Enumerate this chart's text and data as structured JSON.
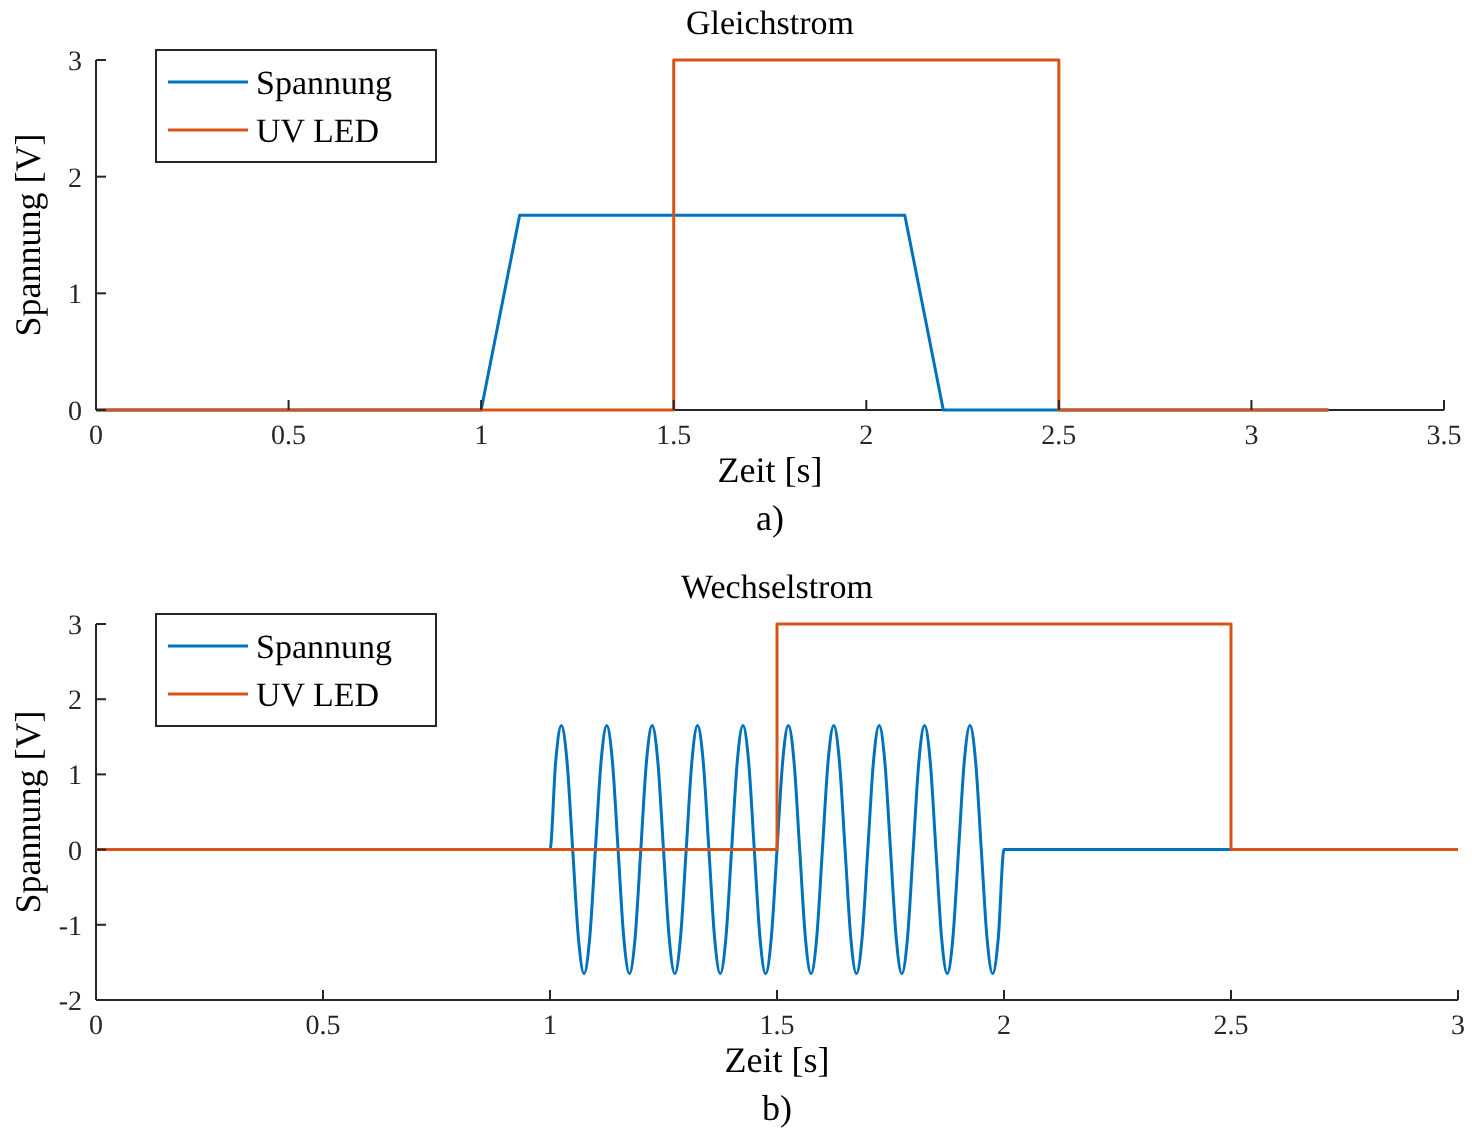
{
  "chart_data": [
    {
      "type": "line",
      "title": "Gleichstrom",
      "xlabel": "Zeit [s]",
      "ylabel": "Spannung [V]",
      "annotations": [
        "a)"
      ],
      "xlim": [
        0,
        3.5
      ],
      "xticks": [
        0,
        0.5,
        1,
        1.5,
        2,
        2.5,
        3,
        3.5
      ],
      "ylim": [
        0,
        3
      ],
      "yticks": [
        0,
        1,
        2,
        3
      ],
      "legend": "top left",
      "grid": false,
      "line_style": "solid",
      "series": [
        {
          "name": "Spannung",
          "color": "#0072bd",
          "x": [
            0,
            1,
            1.1,
            2.1,
            2.2,
            3.2
          ],
          "values": [
            0,
            0,
            1.67,
            1.67,
            0,
            0
          ]
        },
        {
          "name": "UV LED",
          "color": "#d95319",
          "x": [
            0,
            1.5,
            1.5,
            2.5,
            2.5,
            3.2
          ],
          "values": [
            0,
            0,
            3,
            3,
            0,
            0
          ]
        }
      ]
    },
    {
      "type": "line",
      "title": "Wechselstrom",
      "xlabel": "Zeit [s]",
      "ylabel": "Spannung [V]",
      "annotations": [
        "b)"
      ],
      "xlim": [
        0,
        3
      ],
      "xticks": [
        0,
        0.5,
        1,
        1.5,
        2,
        2.5,
        3
      ],
      "ylim": [
        -2,
        3
      ],
      "yticks": [
        -2,
        -1,
        0,
        1,
        2,
        3
      ],
      "legend": "top left",
      "grid": false,
      "line_style": "solid",
      "series": [
        {
          "name": "Spannung",
          "color": "#0072bd",
          "x": [
            0,
            1,
            1.0125,
            1.025,
            1.0375,
            1.05,
            1.0625,
            1.075,
            1.0875,
            1.1,
            1.1125,
            1.125,
            1.1375,
            1.15,
            1.1625,
            1.175,
            1.1875,
            1.2,
            1.2125,
            1.225,
            1.2375,
            1.25,
            1.2625,
            1.275,
            1.2875,
            1.3,
            1.3125,
            1.325,
            1.3375,
            1.35,
            1.3625,
            1.375,
            1.3875,
            1.4,
            1.4125,
            1.425,
            1.4375,
            1.45,
            1.4625,
            1.475,
            1.4875,
            1.5,
            1.5125,
            1.525,
            1.5375,
            1.55,
            1.5625,
            1.575,
            1.5875,
            1.6,
            1.6125,
            1.625,
            1.6375,
            1.65,
            1.6625,
            1.675,
            1.6875,
            1.7,
            1.7125,
            1.725,
            1.7375,
            1.75,
            1.7625,
            1.775,
            1.7875,
            1.8,
            1.8125,
            1.825,
            1.8375,
            1.85,
            1.8625,
            1.875,
            1.8875,
            1.9,
            1.9125,
            1.925,
            1.9375,
            1.95,
            1.9625,
            1.975,
            1.9875,
            2,
            3
          ],
          "values": [
            0,
            0,
            1.17,
            1.65,
            1.17,
            0,
            -1.17,
            -1.65,
            -1.17,
            0,
            1.17,
            1.65,
            1.17,
            0,
            -1.17,
            -1.65,
            -1.17,
            0,
            1.17,
            1.65,
            1.17,
            0,
            -1.17,
            -1.65,
            -1.17,
            0,
            1.17,
            1.65,
            1.17,
            0,
            -1.17,
            -1.65,
            -1.17,
            0,
            1.17,
            1.65,
            1.17,
            0,
            -1.17,
            -1.65,
            -1.17,
            0,
            1.17,
            1.65,
            1.17,
            0,
            -1.17,
            -1.65,
            -1.17,
            0,
            1.17,
            1.65,
            1.17,
            0,
            -1.17,
            -1.65,
            -1.17,
            0,
            1.17,
            1.65,
            1.17,
            0,
            -1.17,
            -1.65,
            -1.17,
            0,
            1.17,
            1.65,
            1.17,
            0,
            -1.17,
            -1.65,
            -1.17,
            0,
            1.17,
            1.65,
            1.17,
            0,
            -1.17,
            -1.65,
            -1.17,
            0,
            0
          ]
        },
        {
          "name": "UV LED",
          "color": "#d95319",
          "x": [
            0,
            1.5,
            1.5,
            2.5,
            2.5,
            3
          ],
          "values": [
            0,
            0,
            3,
            3,
            0,
            0
          ]
        }
      ]
    }
  ]
}
